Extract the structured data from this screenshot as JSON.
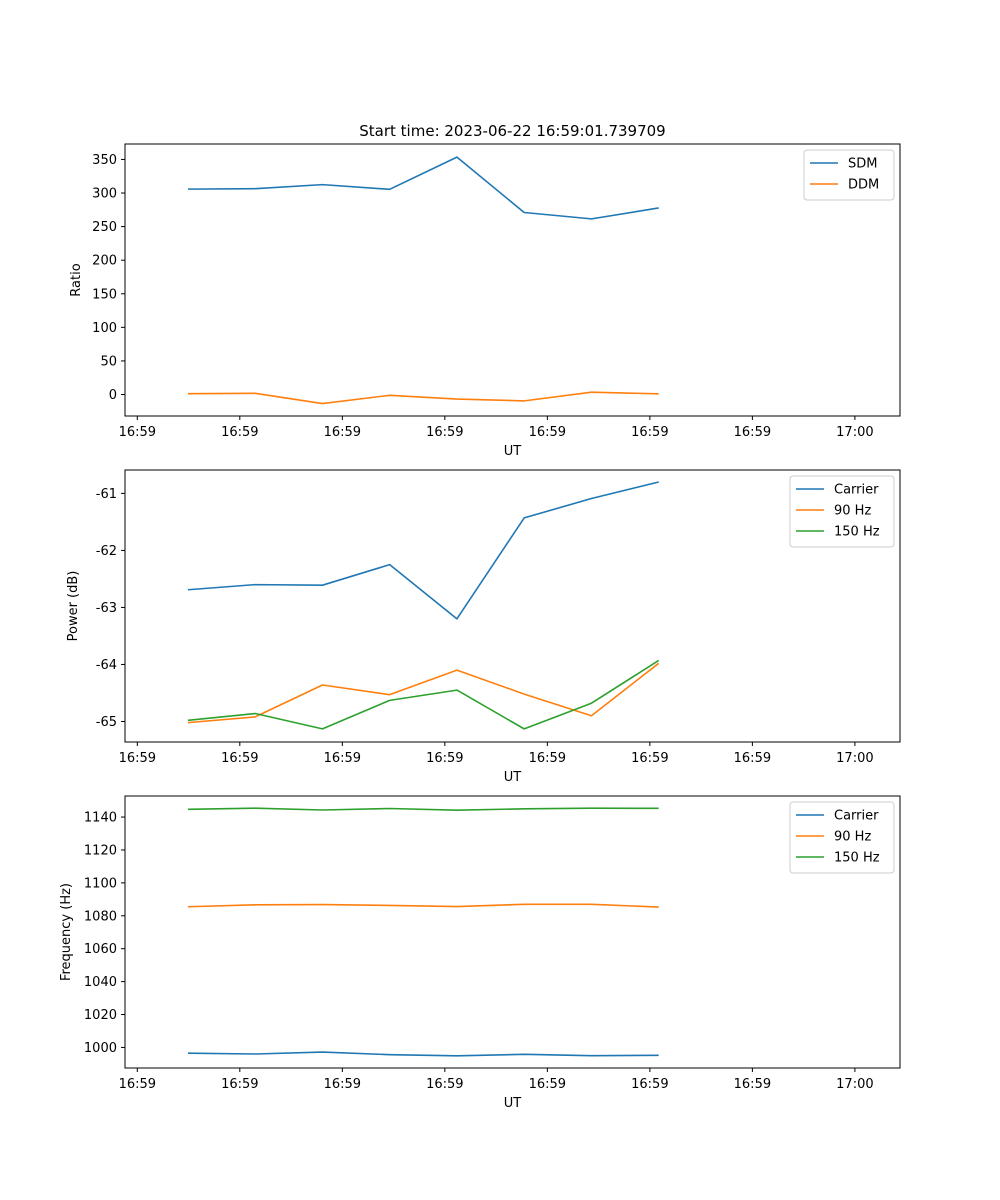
{
  "chart_data": [
    {
      "type": "line",
      "title": "Start time: 2023-06-22 16:59:01.739709",
      "xlabel": "UT",
      "ylabel": "Ratio",
      "x_tick_labels": [
        "16:59",
        "16:59",
        "16:59",
        "16:59",
        "16:59",
        "16:59",
        "16:59",
        "17:00"
      ],
      "x_tick_times": [
        0.0,
        5.0,
        10.0,
        15.0,
        20.0,
        25.0,
        30.0,
        35.0
      ],
      "xlim": [
        -0.6,
        37.2
      ],
      "ylim": [
        -32,
        373
      ],
      "y_ticks": [
        0,
        50,
        100,
        150,
        200,
        250,
        300,
        350
      ],
      "x": [
        2.47,
        5.75,
        9.03,
        12.31,
        15.59,
        18.87,
        22.15,
        25.43
      ],
      "series": [
        {
          "name": "SDM",
          "color": "#1f77b4",
          "values": [
            305.8,
            306.5,
            312.5,
            305.5,
            353.5,
            271.0,
            261.5,
            277.8
          ]
        },
        {
          "name": "DDM",
          "color": "#ff7f0e",
          "values": [
            1.3,
            1.8,
            -13.5,
            -1.2,
            -6.8,
            -9.5,
            3.5,
            1.0
          ]
        }
      ],
      "legend": "top-right",
      "grid": false
    },
    {
      "type": "line",
      "title": "",
      "xlabel": "UT",
      "ylabel": "Power (dB)",
      "x_tick_labels": [
        "16:59",
        "16:59",
        "16:59",
        "16:59",
        "16:59",
        "16:59",
        "16:59",
        "17:00"
      ],
      "x_tick_times": [
        0.0,
        5.0,
        10.0,
        15.0,
        20.0,
        25.0,
        30.0,
        35.0
      ],
      "xlim": [
        -0.6,
        37.2
      ],
      "ylim": [
        -65.36,
        -60.59
      ],
      "y_ticks": [
        -65,
        -64,
        -63,
        -62,
        -61
      ],
      "x": [
        2.47,
        5.75,
        9.03,
        12.31,
        15.59,
        18.87,
        22.15,
        25.43
      ],
      "series": [
        {
          "name": "Carrier",
          "color": "#1f77b4",
          "values": [
            -62.69,
            -62.6,
            -62.61,
            -62.25,
            -63.2,
            -61.43,
            -61.09,
            -60.8
          ]
        },
        {
          "name": "90 Hz",
          "color": "#ff7f0e",
          "values": [
            -65.02,
            -64.92,
            -64.36,
            -64.53,
            -64.1,
            -64.52,
            -64.9,
            -63.98
          ]
        },
        {
          "name": "150 Hz",
          "color": "#2ca02c",
          "values": [
            -64.98,
            -64.86,
            -65.13,
            -64.63,
            -64.45,
            -65.13,
            -64.68,
            -63.93
          ]
        }
      ],
      "legend": "top-right",
      "grid": false
    },
    {
      "type": "line",
      "title": "",
      "xlabel": "UT",
      "ylabel": "Frequency (Hz)",
      "x_tick_labels": [
        "16:59",
        "16:59",
        "16:59",
        "16:59",
        "16:59",
        "16:59",
        "16:59",
        "17:00"
      ],
      "x_tick_times": [
        0.0,
        5.0,
        10.0,
        15.0,
        20.0,
        25.0,
        30.0,
        35.0
      ],
      "xlim": [
        -0.6,
        37.2
      ],
      "ylim": [
        987.5,
        1152.8
      ],
      "y_ticks": [
        1000,
        1020,
        1040,
        1060,
        1080,
        1100,
        1120,
        1140
      ],
      "x": [
        2.47,
        5.75,
        9.03,
        12.31,
        15.59,
        18.87,
        22.15,
        25.43
      ],
      "series": [
        {
          "name": "Carrier",
          "color": "#1f77b4",
          "values": [
            996.5,
            996.0,
            997.2,
            995.6,
            994.9,
            995.8,
            995.0,
            995.2
          ]
        },
        {
          "name": "90 Hz",
          "color": "#ff7f0e",
          "values": [
            1085.5,
            1086.7,
            1086.8,
            1086.3,
            1085.6,
            1087.0,
            1087.0,
            1085.3
          ]
        },
        {
          "name": "150 Hz",
          "color": "#2ca02c",
          "values": [
            1144.7,
            1145.4,
            1144.3,
            1145.2,
            1144.2,
            1145.0,
            1145.4,
            1145.3
          ]
        }
      ],
      "legend": "top-right",
      "grid": false
    }
  ]
}
